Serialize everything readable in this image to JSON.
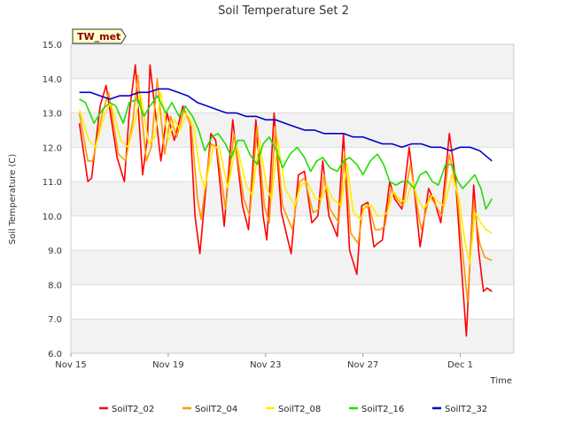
{
  "chart_data": {
    "type": "line",
    "title": "Soil Temperature Set 2",
    "xlabel": "Time",
    "ylabel": "Soil Temperature (C)",
    "badge": "TW_met",
    "ylim": [
      6.0,
      15.0
    ],
    "yticks": [
      "6.0",
      "7.0",
      "8.0",
      "9.0",
      "10.0",
      "11.0",
      "12.0",
      "13.0",
      "14.0",
      "15.0"
    ],
    "xlim": [
      0,
      18.2
    ],
    "xticks": [
      {
        "label": "Nov 15",
        "day": 0
      },
      {
        "label": "Nov 19",
        "day": 4
      },
      {
        "label": "Nov 23",
        "day": 8
      },
      {
        "label": "Nov 27",
        "day": 12
      },
      {
        "label": "Dec 1",
        "day": 16
      }
    ],
    "grid": "horizontal bands",
    "legend_position": "bottom",
    "series": [
      {
        "name": "SoilT2_02",
        "color": "#ff0000",
        "x": [
          0.35,
          0.7,
          0.85,
          1.2,
          1.45,
          1.9,
          2.2,
          2.4,
          2.65,
          2.95,
          3.15,
          3.25,
          3.7,
          3.95,
          4.25,
          4.6,
          4.9,
          5.1,
          5.3,
          5.75,
          5.95,
          6.3,
          6.65,
          7.05,
          7.3,
          7.6,
          7.9,
          8.05,
          8.35,
          8.65,
          9.05,
          9.35,
          9.6,
          9.9,
          10.15,
          10.35,
          10.6,
          10.95,
          11.2,
          11.45,
          11.75,
          11.95,
          12.2,
          12.45,
          12.6,
          12.8,
          13.1,
          13.3,
          13.6,
          13.9,
          14.1,
          14.35,
          14.7,
          14.95,
          15.2,
          15.55,
          15.8,
          16.05,
          16.25,
          16.55,
          16.75,
          16.95,
          17.1,
          17.3
        ],
        "y": [
          12.7,
          11.0,
          11.1,
          13.2,
          13.8,
          11.7,
          11.0,
          13.0,
          14.4,
          11.2,
          12.3,
          14.4,
          11.6,
          13.0,
          12.2,
          13.2,
          12.7,
          10.0,
          8.9,
          12.4,
          12.2,
          9.7,
          12.8,
          10.3,
          9.6,
          12.8,
          10.0,
          9.3,
          13.0,
          10.1,
          8.9,
          11.2,
          11.3,
          9.8,
          10.0,
          11.6,
          10.0,
          9.4,
          12.4,
          9.0,
          8.3,
          10.3,
          10.4,
          9.1,
          9.2,
          9.3,
          11.0,
          10.5,
          10.2,
          12.0,
          10.8,
          9.1,
          10.8,
          10.4,
          9.8,
          12.4,
          11.1,
          8.5,
          6.5,
          10.9,
          9.0,
          7.8,
          7.9,
          7.8
        ],
        "note_shape": "diurnal oscillation"
      },
      {
        "name": "SoilT2_04",
        "color": "#ff9900",
        "x": [
          0.35,
          0.7,
          0.9,
          1.3,
          1.55,
          1.95,
          2.25,
          2.55,
          2.75,
          3.1,
          3.3,
          3.55,
          3.85,
          4.1,
          4.35,
          4.65,
          4.95,
          5.2,
          5.35,
          5.75,
          6.0,
          6.35,
          6.7,
          7.1,
          7.35,
          7.65,
          7.95,
          8.15,
          8.4,
          8.7,
          9.1,
          9.4,
          9.6,
          9.95,
          10.2,
          10.4,
          10.65,
          11.0,
          11.25,
          11.5,
          11.8,
          12.0,
          12.25,
          12.5,
          12.7,
          12.9,
          13.15,
          13.4,
          13.65,
          13.95,
          14.15,
          14.4,
          14.75,
          15.0,
          15.25,
          15.55,
          15.85,
          16.1,
          16.3,
          16.55,
          16.8,
          17.0,
          17.3
        ],
        "y": [
          13.0,
          11.6,
          11.6,
          13.0,
          13.6,
          11.8,
          11.6,
          12.8,
          14.1,
          11.6,
          12.0,
          14.0,
          11.8,
          12.9,
          12.3,
          13.1,
          12.6,
          10.5,
          9.9,
          12.1,
          12.0,
          10.2,
          12.4,
          10.5,
          10.0,
          12.6,
          10.3,
          9.8,
          12.6,
          10.3,
          9.6,
          11.0,
          11.1,
          10.1,
          10.2,
          11.2,
          10.2,
          9.8,
          11.9,
          9.5,
          9.2,
          10.2,
          10.3,
          9.6,
          9.6,
          9.7,
          10.8,
          10.5,
          10.3,
          11.5,
          10.6,
          9.6,
          10.6,
          10.3,
          10.0,
          11.8,
          10.8,
          8.9,
          7.5,
          10.4,
          9.2,
          8.8,
          8.7
        ],
        "note_shape": "diurnal oscillation"
      },
      {
        "name": "SoilT2_08",
        "color": "#ffee00",
        "x": [
          0.35,
          0.75,
          1.0,
          1.4,
          1.65,
          2.05,
          2.35,
          2.65,
          2.85,
          3.2,
          3.45,
          3.7,
          4.0,
          4.25,
          4.5,
          4.75,
          5.05,
          5.3,
          5.5,
          5.85,
          6.1,
          6.45,
          6.8,
          7.2,
          7.45,
          7.75,
          8.05,
          8.25,
          8.5,
          8.8,
          9.2,
          9.45,
          9.7,
          10.05,
          10.3,
          10.5,
          10.75,
          11.1,
          11.35,
          11.6,
          11.9,
          12.1,
          12.35,
          12.6,
          12.8,
          13.0,
          13.25,
          13.5,
          13.75,
          14.05,
          14.25,
          14.5,
          14.85,
          15.1,
          15.35,
          15.65,
          15.95,
          16.2,
          16.4,
          16.6,
          16.85,
          17.05,
          17.3
        ],
        "y": [
          13.1,
          12.2,
          12.0,
          13.0,
          13.3,
          12.2,
          12.0,
          12.8,
          13.6,
          12.1,
          12.3,
          13.6,
          12.2,
          12.8,
          12.5,
          13.0,
          12.6,
          11.3,
          10.8,
          12.0,
          12.0,
          10.8,
          12.1,
          10.9,
          10.6,
          12.2,
          10.8,
          10.5,
          12.2,
          10.8,
          10.3,
          10.9,
          11.0,
          10.5,
          10.5,
          10.9,
          10.5,
          10.3,
          11.5,
          10.1,
          9.9,
          10.3,
          10.3,
          10.0,
          10.0,
          10.1,
          10.7,
          10.5,
          10.4,
          11.0,
          10.5,
          10.2,
          10.6,
          10.4,
          10.3,
          11.2,
          10.5,
          9.2,
          8.6,
          10.1,
          9.8,
          9.6,
          9.5
        ],
        "note_shape": "diurnal oscillation"
      },
      {
        "name": "SoilT2_16",
        "color": "#22dd00",
        "x": [
          0.35,
          0.6,
          0.95,
          1.3,
          1.6,
          1.85,
          2.15,
          2.4,
          2.75,
          3.0,
          3.25,
          3.55,
          3.9,
          4.15,
          4.45,
          4.7,
          5.0,
          5.25,
          5.5,
          5.8,
          6.05,
          6.35,
          6.6,
          6.85,
          7.1,
          7.35,
          7.65,
          7.9,
          8.15,
          8.45,
          8.7,
          9.0,
          9.3,
          9.6,
          9.85,
          10.1,
          10.35,
          10.65,
          10.95,
          11.2,
          11.45,
          11.75,
          12.0,
          12.3,
          12.6,
          12.85,
          13.1,
          13.35,
          13.6,
          13.85,
          14.1,
          14.35,
          14.6,
          14.85,
          15.1,
          15.4,
          15.65,
          15.9,
          16.1,
          16.35,
          16.6,
          16.85,
          17.05,
          17.3
        ],
        "y": [
          13.4,
          13.3,
          12.7,
          13.1,
          13.3,
          13.2,
          12.7,
          13.3,
          13.4,
          12.9,
          13.2,
          13.5,
          13.0,
          13.3,
          12.9,
          13.2,
          12.9,
          12.5,
          11.9,
          12.3,
          12.4,
          12.1,
          11.7,
          12.2,
          12.2,
          11.8,
          11.5,
          12.1,
          12.3,
          11.9,
          11.4,
          11.8,
          12.0,
          11.7,
          11.3,
          11.6,
          11.7,
          11.4,
          11.3,
          11.6,
          11.7,
          11.5,
          11.2,
          11.6,
          11.8,
          11.5,
          11.0,
          10.9,
          11.0,
          11.0,
          10.8,
          11.2,
          11.3,
          11.0,
          10.9,
          11.5,
          11.5,
          11.0,
          10.8,
          11.0,
          11.2,
          10.8,
          10.2,
          10.5
        ],
        "note_shape": "diurnal oscillation"
      },
      {
        "name": "SoilT2_32",
        "color": "#0000cc",
        "x": [
          0.35,
          0.8,
          1.2,
          1.6,
          2.0,
          2.4,
          2.8,
          3.2,
          3.6,
          4.0,
          4.4,
          4.8,
          5.2,
          5.6,
          6.0,
          6.4,
          6.8,
          7.2,
          7.6,
          8.0,
          8.4,
          8.8,
          9.2,
          9.6,
          10.0,
          10.4,
          10.8,
          11.2,
          11.6,
          12.0,
          12.4,
          12.8,
          13.2,
          13.6,
          14.0,
          14.4,
          14.8,
          15.2,
          15.6,
          16.0,
          16.4,
          16.8,
          17.3
        ],
        "y": [
          13.6,
          13.6,
          13.5,
          13.4,
          13.5,
          13.5,
          13.6,
          13.6,
          13.7,
          13.7,
          13.6,
          13.5,
          13.3,
          13.2,
          13.1,
          13.0,
          13.0,
          12.9,
          12.9,
          12.8,
          12.8,
          12.7,
          12.6,
          12.5,
          12.5,
          12.4,
          12.4,
          12.4,
          12.3,
          12.3,
          12.2,
          12.1,
          12.1,
          12.0,
          12.1,
          12.1,
          12.0,
          12.0,
          11.9,
          12.0,
          12.0,
          11.9,
          11.6
        ],
        "note_shape": "slow decline"
      }
    ]
  }
}
